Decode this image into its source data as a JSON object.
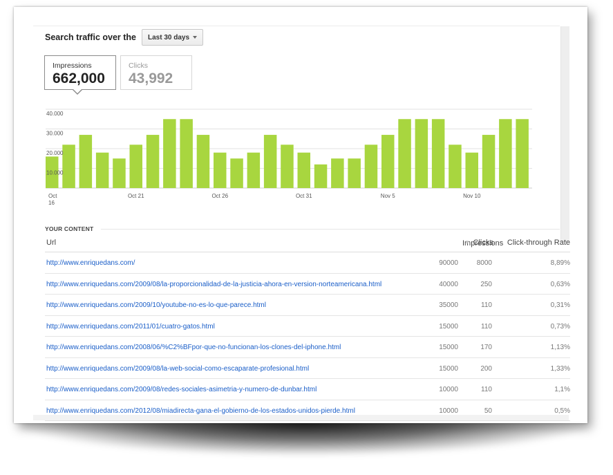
{
  "header": {
    "title": "Search traffic over the",
    "range_label": "Last 30 days"
  },
  "metrics": {
    "impressions": {
      "label": "Impressions",
      "value": "662,000"
    },
    "clicks": {
      "label": "Clicks",
      "value": "43,992"
    }
  },
  "colors": {
    "bar": "#a8d63f",
    "link": "#1a5ec8"
  },
  "chart_data": {
    "type": "bar",
    "y_ticks": [
      "10.000",
      "20.000",
      "30.000",
      "40.000"
    ],
    "ylim": [
      0,
      40000
    ],
    "x_tick_labels": [
      "Oct\n16",
      "Oct 21",
      "Oct 26",
      "Oct 31",
      "Nov 5",
      "Nov 10"
    ],
    "categories": [
      "Oct 16",
      "Oct 17",
      "Oct 18",
      "Oct 19",
      "Oct 20",
      "Oct 21",
      "Oct 22",
      "Oct 23",
      "Oct 24",
      "Oct 25",
      "Oct 26",
      "Oct 27",
      "Oct 28",
      "Oct 29",
      "Oct 30",
      "Oct 31",
      "Nov 1",
      "Nov 2",
      "Nov 3",
      "Nov 4",
      "Nov 5",
      "Nov 6",
      "Nov 7",
      "Nov 8",
      "Nov 9",
      "Nov 10",
      "Nov 11",
      "Nov 12",
      "Nov 13"
    ],
    "values": [
      16000,
      22000,
      27000,
      18000,
      15000,
      22000,
      27000,
      35000,
      35000,
      27000,
      18000,
      15000,
      18000,
      27000,
      22000,
      18000,
      12000,
      15000,
      15000,
      22000,
      27000,
      35000,
      35000,
      35000,
      22000,
      18000,
      27000,
      35000,
      35000
    ],
    "grid": true
  },
  "content": {
    "section_label": "YOUR CONTENT",
    "columns": {
      "url": "Url",
      "impressions": "Impressions",
      "impressions_sort": "▼",
      "clicks": "Clicks",
      "ctr": "Click-through Rate"
    },
    "rows": [
      {
        "url": "http://www.enriquedans.com/",
        "impressions": "90000",
        "clicks": "8000",
        "ctr": "8,89%"
      },
      {
        "url": "http://www.enriquedans.com/2009/08/la-proporcionalidad-de-la-justicia-ahora-en-version-norteamericana.html",
        "impressions": "40000",
        "clicks": "250",
        "ctr": "0,63%"
      },
      {
        "url": "http://www.enriquedans.com/2009/10/youtube-no-es-lo-que-parece.html",
        "impressions": "35000",
        "clicks": "110",
        "ctr": "0,31%"
      },
      {
        "url": "http://www.enriquedans.com/2011/01/cuatro-gatos.html",
        "impressions": "15000",
        "clicks": "110",
        "ctr": "0,73%"
      },
      {
        "url": "http://www.enriquedans.com/2008/06/%C2%BFpor-que-no-funcionan-los-clones-del-iphone.html",
        "impressions": "15000",
        "clicks": "170",
        "ctr": "1,13%"
      },
      {
        "url": "http://www.enriquedans.com/2009/08/la-web-social-como-escaparate-profesional.html",
        "impressions": "15000",
        "clicks": "200",
        "ctr": "1,33%"
      },
      {
        "url": "http://www.enriquedans.com/2009/08/redes-sociales-asimetria-y-numero-de-dunbar.html",
        "impressions": "10000",
        "clicks": "110",
        "ctr": "1,1%"
      },
      {
        "url": "http://www.enriquedans.com/2012/08/miadirecta-gana-el-gobierno-de-los-estados-unidos-pierde.html",
        "impressions": "10000",
        "clicks": "50",
        "ctr": "0,5%"
      }
    ]
  }
}
